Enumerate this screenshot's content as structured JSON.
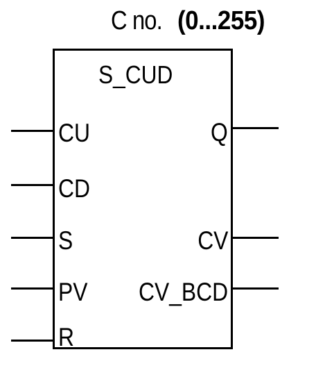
{
  "header": {
    "label": "C no.",
    "range": "(0...255)"
  },
  "block": {
    "title": "S_CUD",
    "inputs": [
      "CU",
      "CD",
      "S",
      "PV",
      "R"
    ],
    "outputs": [
      "Q",
      "CV",
      "CV_BCD"
    ]
  }
}
